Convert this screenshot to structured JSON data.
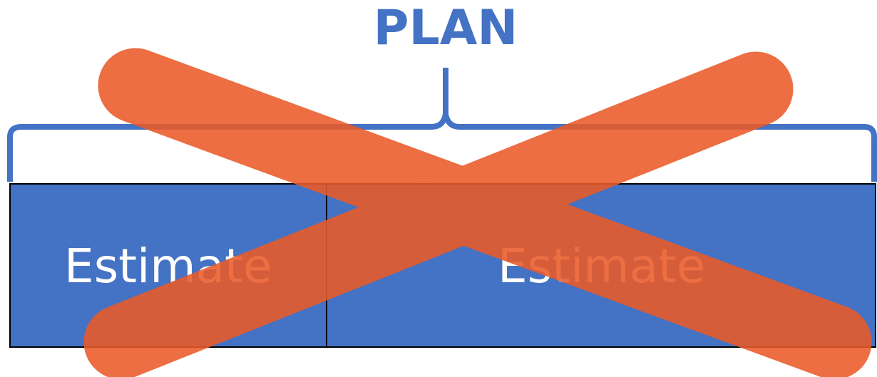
{
  "title": "PLAN",
  "boxes": [
    {
      "label": "Estimate"
    },
    {
      "label": "Estimate"
    }
  ]
}
